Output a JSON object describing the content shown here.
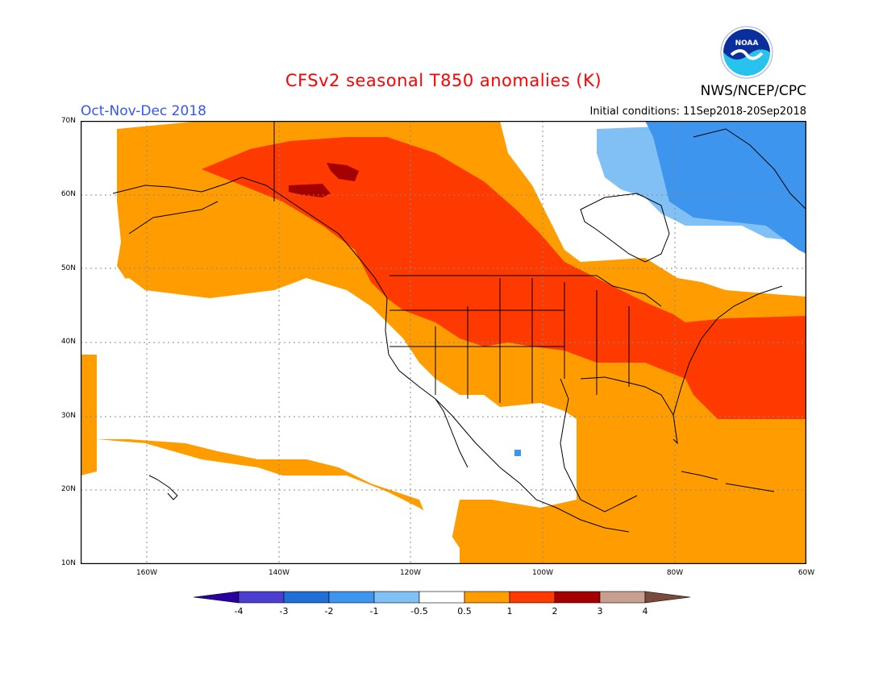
{
  "header": {
    "title": "CFSv2 seasonal T850 anomalies (K)",
    "period": "Oct-Nov-Dec 2018",
    "initial_conditions": "Initial conditions: 11Sep2018-20Sep2018",
    "organization": "NWS/NCEP/CPC",
    "logo_text": "NOAA"
  },
  "map": {
    "lat_labels": [
      "70N",
      "60N",
      "50N",
      "40N",
      "30N",
      "20N",
      "10N"
    ],
    "lon_labels": [
      "160W",
      "140W",
      "120W",
      "100W",
      "80W",
      "60W"
    ]
  },
  "colorbar": {
    "labels": [
      "-4",
      "-3",
      "-2",
      "-1",
      "-0.5",
      "0.5",
      "1",
      "2",
      "3",
      "4"
    ],
    "colors": [
      "#2a00a0",
      "#4c3fd0",
      "#1f6fd6",
      "#3d95ee",
      "#80c0f5",
      "#ffffff",
      "#ff9d00",
      "#ff3a00",
      "#a50000",
      "#c8a090",
      "#7a4a3a"
    ]
  },
  "colors": {
    "orange": "#ff9d00",
    "red": "#ff3a00",
    "darkred": "#a50000",
    "blue_mid": "#3d95ee",
    "blue_light": "#80c0f5"
  }
}
